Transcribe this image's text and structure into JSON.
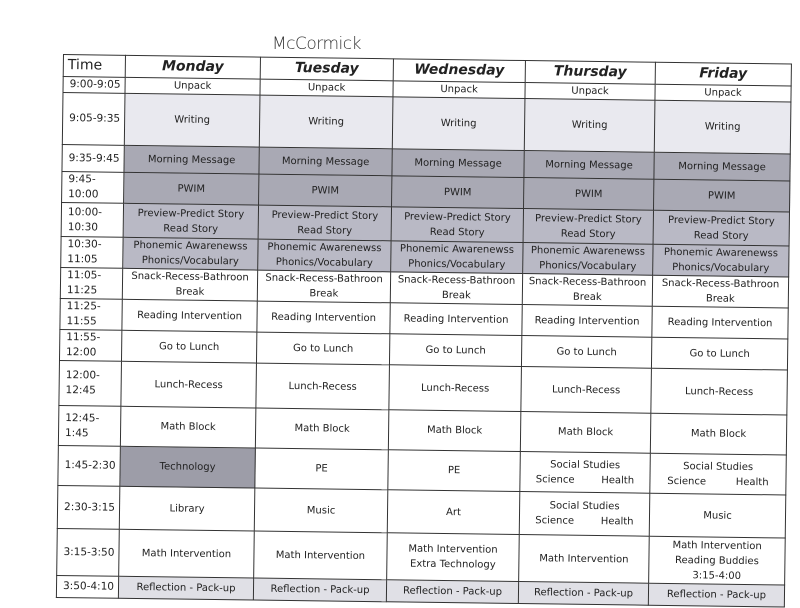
{
  "handwritten_name": "McCormick",
  "header": {
    "time": "Time",
    "days": [
      "Monday",
      "Tuesday",
      "Wednesday",
      "Thursday",
      "Friday"
    ]
  },
  "rows": [
    {
      "time": "9:00-9:05",
      "cells": [
        [
          "Unpack"
        ],
        [
          "Unpack"
        ],
        [
          "Unpack"
        ],
        [
          "Unpack"
        ],
        [
          "Unpack"
        ]
      ]
    },
    {
      "time": "9:05-9:35",
      "cells": [
        [
          "Writing"
        ],
        [
          "Writing"
        ],
        [
          "Writing"
        ],
        [
          "Writing"
        ],
        [
          "Writing"
        ]
      ]
    },
    {
      "time": "9:35-9:45",
      "cells": [
        [
          "Morning Message"
        ],
        [
          "Morning Message"
        ],
        [
          "Morning Message"
        ],
        [
          "Morning Message"
        ],
        [
          "Morning Message"
        ]
      ]
    },
    {
      "time": "9:45-10:00",
      "cells": [
        [
          "PWIM"
        ],
        [
          "PWIM"
        ],
        [
          "PWIM"
        ],
        [
          "PWIM"
        ],
        [
          "PWIM"
        ]
      ]
    },
    {
      "time": "10:00-10:30",
      "cells": [
        [
          "Preview-Predict Story",
          "Read Story"
        ],
        [
          "Preview-Predict Story",
          "Read Story"
        ],
        [
          "Preview-Predict Story",
          "Read Story"
        ],
        [
          "Preview-Predict Story",
          "Read Story"
        ],
        [
          "Preview-Predict Story",
          "Read Story"
        ]
      ]
    },
    {
      "time": "10:30-11:05",
      "cells": [
        [
          "Phonemic Awarenewss",
          "Phonics/Vocabulary"
        ],
        [
          "Phonemic Awarenewss",
          "Phonics/Vocabulary"
        ],
        [
          "Phonemic Awarenewss",
          "Phonics/Vocabulary"
        ],
        [
          "Phonemic Awarenewss",
          "Phonics/Vocabulary"
        ],
        [
          "Phonemic Awarenewss",
          "Phonics/Vocabulary"
        ]
      ]
    },
    {
      "time": "11:05-11:25",
      "cells": [
        [
          "Snack-Recess-Bathroon",
          "Break"
        ],
        [
          "Snack-Recess-Bathroon",
          "Break"
        ],
        [
          "Snack-Recess-Bathroon",
          "Break"
        ],
        [
          "Snack-Recess-Bathroon",
          "Break"
        ],
        [
          "Snack-Recess-Bathroon",
          "Break"
        ]
      ]
    },
    {
      "time": "11:25-11:55",
      "cells": [
        [
          "Reading Intervention"
        ],
        [
          "Reading Intervention"
        ],
        [
          "Reading Intervention"
        ],
        [
          "Reading Intervention"
        ],
        [
          "Reading Intervention"
        ]
      ]
    },
    {
      "time": "11:55-12:00",
      "cells": [
        [
          "Go to Lunch"
        ],
        [
          "Go to Lunch"
        ],
        [
          "Go to Lunch"
        ],
        [
          "Go to Lunch"
        ],
        [
          "Go to Lunch"
        ]
      ]
    },
    {
      "time": "12:00-12:45",
      "cells": [
        [
          "Lunch-Recess"
        ],
        [
          "Lunch-Recess"
        ],
        [
          "Lunch-Recess"
        ],
        [
          "Lunch-Recess"
        ],
        [
          "Lunch-Recess"
        ]
      ]
    },
    {
      "time": "12:45-1:45",
      "cells": [
        [
          "Math Block"
        ],
        [
          "Math Block"
        ],
        [
          "Math Block"
        ],
        [
          "Math Block"
        ],
        [
          "Math Block"
        ]
      ]
    },
    {
      "time": "1:45-2:30",
      "cells": [
        [
          "Technology"
        ],
        [
          "PE"
        ],
        [
          "PE"
        ],
        [
          "Social Studies",
          "Science|Health"
        ],
        [
          "Social Studies",
          "Science|Health"
        ]
      ]
    },
    {
      "time": "2:30-3:15",
      "cells": [
        [
          "Library"
        ],
        [
          "Music"
        ],
        [
          "Art"
        ],
        [
          "Social Studies",
          "Science|Health"
        ],
        [
          "Music"
        ]
      ]
    },
    {
      "time": "3:15-3:50",
      "cells": [
        [
          "Math Intervention"
        ],
        [
          "Math Intervention"
        ],
        [
          "Math Intervention",
          "Extra Technology"
        ],
        [
          "Math Intervention"
        ],
        [
          "Math Intervention",
          "Reading Buddies",
          "3:15-4:00"
        ]
      ]
    },
    {
      "time": "3:50-4:10",
      "cells": [
        [
          "Reflection - Pack-up"
        ],
        [
          "Reflection - Pack-up"
        ],
        [
          "Reflection - Pack-up"
        ],
        [
          "Reflection - Pack-up"
        ],
        [
          "Reflection - Pack-up"
        ]
      ]
    }
  ],
  "shading": [
    "",
    "light",
    "dark",
    "dark",
    "med",
    "med",
    "",
    "",
    "",
    "",
    "",
    "",
    "",
    "",
    "refl"
  ],
  "colors": {
    "light": "#e9e9ef",
    "dark": "#a9a9b4",
    "medium": "#b9b9c5",
    "technology": "#9d9da8"
  }
}
